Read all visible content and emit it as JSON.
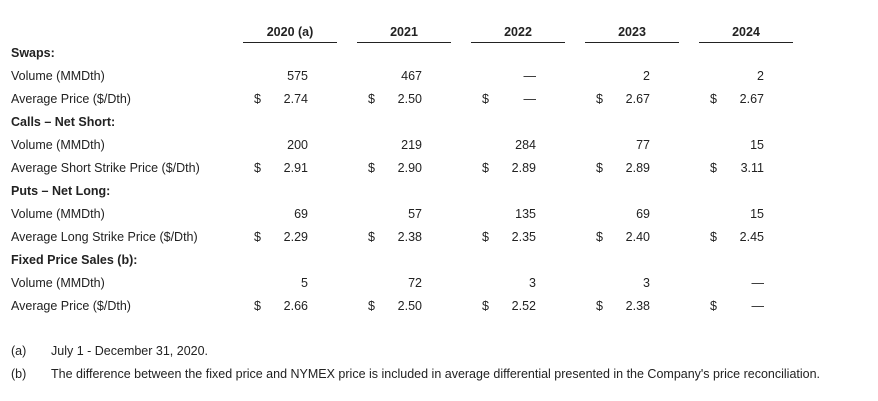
{
  "columns": [
    "2020 (a)",
    "2021",
    "2022",
    "2023",
    "2024"
  ],
  "rows": [
    {
      "type": "section",
      "label": "Swaps:"
    },
    {
      "type": "data",
      "label": "Volume (MMDth)",
      "dollar": false,
      "values": [
        "575",
        "467",
        "—",
        "2",
        "2"
      ]
    },
    {
      "type": "data",
      "label": "Average Price ($/Dth)",
      "dollar": true,
      "values": [
        "2.74",
        "2.50",
        "—",
        "2.67",
        "2.67"
      ]
    },
    {
      "type": "section",
      "label": "Calls – Net Short:"
    },
    {
      "type": "data",
      "label": "Volume (MMDth)",
      "dollar": false,
      "values": [
        "200",
        "219",
        "284",
        "77",
        "15"
      ]
    },
    {
      "type": "data",
      "label": "Average Short Strike Price ($/Dth)",
      "dollar": true,
      "values": [
        "2.91",
        "2.90",
        "2.89",
        "2.89",
        "3.11"
      ]
    },
    {
      "type": "section",
      "label": "Puts – Net Long:"
    },
    {
      "type": "data",
      "label": "Volume (MMDth)",
      "dollar": false,
      "values": [
        "69",
        "57",
        "135",
        "69",
        "15"
      ]
    },
    {
      "type": "data",
      "label": "Average Long Strike Price ($/Dth)",
      "dollar": true,
      "values": [
        "2.29",
        "2.38",
        "2.35",
        "2.40",
        "2.45"
      ]
    },
    {
      "type": "section",
      "label": "Fixed Price Sales (b):"
    },
    {
      "type": "data",
      "label": "Volume (MMDth)",
      "dollar": false,
      "values": [
        "5",
        "72",
        "3",
        "3",
        "—"
      ]
    },
    {
      "type": "data",
      "label": "Average Price ($/Dth)",
      "dollar": true,
      "values": [
        "2.66",
        "2.50",
        "2.52",
        "2.38",
        "—"
      ]
    }
  ],
  "dollar_sign": "$",
  "footnotes": [
    {
      "mark": "(a)",
      "text": "July 1 - December 31, 2020."
    },
    {
      "mark": "(b)",
      "text": "The difference between the fixed price and NYMEX price is included in average differential presented in the Company's price reconciliation."
    }
  ]
}
